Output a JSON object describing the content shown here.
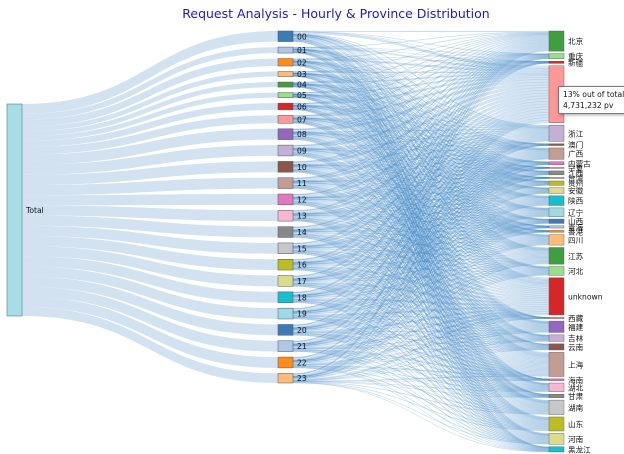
{
  "chart_data": {
    "type": "sankey",
    "title": "Request Analysis - Hourly & Province Distribution",
    "source_node": {
      "name": "Total",
      "color": "#a9dde6"
    },
    "hours": [
      {
        "name": "00",
        "value": 4.4,
        "color": "#3b7cb8"
      },
      {
        "name": "01",
        "value": 2.5,
        "color": "#aec7e8"
      },
      {
        "name": "02",
        "value": 3.1,
        "color": "#ff8c1a"
      },
      {
        "name": "03",
        "value": 2.1,
        "color": "#ffbb78"
      },
      {
        "name": "04",
        "value": 2.1,
        "color": "#3f9e3f"
      },
      {
        "name": "05",
        "value": 2.1,
        "color": "#98df8a"
      },
      {
        "name": "06",
        "value": 2.8,
        "color": "#d62728"
      },
      {
        "name": "07",
        "value": 3.3,
        "color": "#ff9896"
      },
      {
        "name": "08",
        "value": 4.5,
        "color": "#9467bd"
      },
      {
        "name": "09",
        "value": 4.5,
        "color": "#c5b0d5"
      },
      {
        "name": "10",
        "value": 4.5,
        "color": "#8c564b"
      },
      {
        "name": "11",
        "value": 4.5,
        "color": "#c49c94"
      },
      {
        "name": "12",
        "value": 4.5,
        "color": "#e377c2"
      },
      {
        "name": "13",
        "value": 4.5,
        "color": "#f7b6d2"
      },
      {
        "name": "14",
        "value": 4.5,
        "color": "#888888"
      },
      {
        "name": "15",
        "value": 4.5,
        "color": "#c7c7c7"
      },
      {
        "name": "16",
        "value": 4.5,
        "color": "#bcbd22"
      },
      {
        "name": "17",
        "value": 4.5,
        "color": "#dbdb8d"
      },
      {
        "name": "18",
        "value": 4.5,
        "color": "#17becf"
      },
      {
        "name": "19",
        "value": 4.5,
        "color": "#9edae5"
      },
      {
        "name": "20",
        "value": 4.5,
        "color": "#3b7cb8"
      },
      {
        "name": "21",
        "value": 4.5,
        "color": "#aec7e8"
      },
      {
        "name": "22",
        "value": 4.5,
        "color": "#ff8c1a"
      },
      {
        "name": "23",
        "value": 4.0,
        "color": "#ffbb78"
      }
    ],
    "provinces": [
      {
        "name": "北京",
        "value": 4.6,
        "color": "#3f9e3f"
      },
      {
        "name": "重庆",
        "value": 1.2,
        "color": "#98df8a"
      },
      {
        "name": "新疆",
        "value": 0.5,
        "color": "#d62728"
      },
      {
        "name": "广东",
        "value": 13,
        "color": "#ff9896"
      },
      {
        "name": "浙江",
        "value": 3.7,
        "color": "#c5b0d5"
      },
      {
        "name": "澳门",
        "value": 0.4,
        "color": "#8c564b"
      },
      {
        "name": "广西",
        "value": 2.6,
        "color": "#c49c94"
      },
      {
        "name": "内蒙古",
        "value": 0.7,
        "color": "#e377c2"
      },
      {
        "name": "宁夏",
        "value": 0.3,
        "color": "#f7b6d2"
      },
      {
        "name": "江西",
        "value": 0.9,
        "color": "#888888"
      },
      {
        "name": "台湾",
        "value": 0.3,
        "color": "#c7c7c7"
      },
      {
        "name": "贵州",
        "value": 1.0,
        "color": "#bcbd22"
      },
      {
        "name": "安徽",
        "value": 1.3,
        "color": "#dbdb8d"
      },
      {
        "name": "陕西",
        "value": 2.2,
        "color": "#17becf"
      },
      {
        "name": "辽宁",
        "value": 2.0,
        "color": "#9edae5"
      },
      {
        "name": "山西",
        "value": 1.0,
        "color": "#3b7cb8"
      },
      {
        "name": "青海",
        "value": 0.5,
        "color": "#aec7e8"
      },
      {
        "name": "香港",
        "value": 0.4,
        "color": "#ff8c1a"
      },
      {
        "name": "四川",
        "value": 2.4,
        "color": "#ffbb78"
      },
      {
        "name": "江苏",
        "value": 3.8,
        "color": "#3f9e3f"
      },
      {
        "name": "河北",
        "value": 2.0,
        "color": "#98df8a"
      },
      {
        "name": "unknown",
        "value": 8.5,
        "color": "#d62728"
      },
      {
        "name": "西藏",
        "value": 0.3,
        "color": "#ff9896"
      },
      {
        "name": "福建",
        "value": 2.6,
        "color": "#9467bd"
      },
      {
        "name": "吉林",
        "value": 1.5,
        "color": "#c5b0d5"
      },
      {
        "name": "云南",
        "value": 1.4,
        "color": "#8c564b"
      },
      {
        "name": "上海",
        "value": 5.5,
        "color": "#c49c94"
      },
      {
        "name": "海南",
        "value": 0.4,
        "color": "#e377c2"
      },
      {
        "name": "湖北",
        "value": 2.0,
        "color": "#f7b6d2"
      },
      {
        "name": "甘肃",
        "value": 0.8,
        "color": "#888888"
      },
      {
        "name": "湖南",
        "value": 3.3,
        "color": "#c7c7c7"
      },
      {
        "name": "山东",
        "value": 3.2,
        "color": "#bcbd22"
      },
      {
        "name": "河南",
        "value": 2.5,
        "color": "#dbdb8d"
      },
      {
        "name": "黑龙江",
        "value": 1.2,
        "color": "#17becf"
      }
    ],
    "link_color_left": "#a6c6e4",
    "link_color_right": "#3b84c4",
    "grid": false,
    "legend": "none"
  },
  "tooltip": {
    "line1": "13% out of total",
    "line2": "4,731,232 pv"
  }
}
